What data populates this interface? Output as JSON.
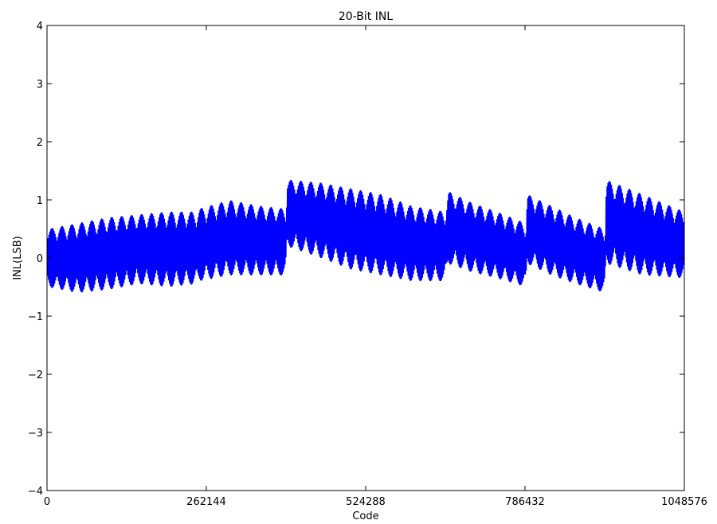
{
  "chart_data": {
    "type": "line",
    "title": "20-Bit INL",
    "xlabel": "Code",
    "ylabel": "INL(LSB)",
    "xlim": [
      0,
      1048576
    ],
    "ylim": [
      -4,
      4
    ],
    "xticks": [
      0,
      262144,
      524288,
      786432,
      1048576
    ],
    "xtick_labels": [
      "0",
      "262144",
      "524288",
      "786432",
      "1048576"
    ],
    "yticks": [
      -4,
      -3,
      -2,
      -1,
      0,
      1,
      2,
      3,
      4
    ],
    "ytick_labels": [
      "−4",
      "−3",
      "−2",
      "−1",
      "0",
      "1",
      "2",
      "3",
      "4"
    ],
    "grid": false,
    "series": [
      {
        "color": "#0000ff",
        "band_x": [
          0,
          50000,
          100000,
          150000,
          200000,
          245000,
          250000,
          300000,
          350000,
          393000,
          395000,
          450000,
          500000,
          550000,
          600000,
          655000,
          660000,
          700000,
          740000,
          788000,
          790000,
          830000,
          870000,
          918000,
          920000,
          980000,
          1048576
        ],
        "band_upper": [
          0.5,
          0.6,
          0.7,
          0.75,
          0.8,
          0.8,
          0.85,
          1.0,
          0.9,
          0.85,
          1.35,
          1.3,
          1.2,
          1.1,
          0.9,
          0.8,
          1.15,
          0.95,
          0.8,
          0.6,
          1.1,
          0.9,
          0.7,
          0.5,
          1.35,
          1.1,
          0.8
        ],
        "band_lower": [
          -0.5,
          -0.6,
          -0.55,
          -0.45,
          -0.5,
          -0.45,
          -0.4,
          -0.3,
          -0.3,
          -0.3,
          0.2,
          0.0,
          -0.2,
          -0.3,
          -0.4,
          -0.4,
          -0.1,
          -0.25,
          -0.35,
          -0.5,
          -0.1,
          -0.3,
          -0.45,
          -0.6,
          -0.1,
          -0.3,
          -0.35
        ]
      }
    ]
  }
}
